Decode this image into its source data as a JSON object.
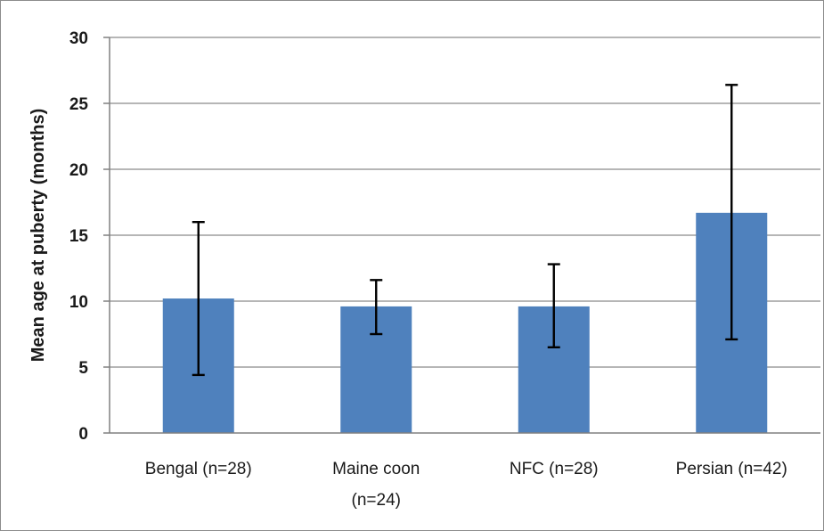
{
  "chart_data": {
    "type": "bar",
    "ylabel": "Mean age at puberty (months)",
    "ylim": [
      0,
      30
    ],
    "yticks": [
      0,
      5,
      10,
      15,
      20,
      25,
      30
    ],
    "grid": true,
    "bar_color": "#4f81bd",
    "categories": [
      [
        "Bengal (n=28)"
      ],
      [
        "Maine coon",
        "(n=24)"
      ],
      [
        "NFC (n=28)"
      ],
      [
        "Persian (n=42)"
      ]
    ],
    "values": [
      10.2,
      9.6,
      9.6,
      16.7
    ],
    "error_low": [
      4.4,
      7.5,
      6.5,
      7.1
    ],
    "error_high": [
      16.0,
      11.6,
      12.8,
      26.4
    ]
  }
}
